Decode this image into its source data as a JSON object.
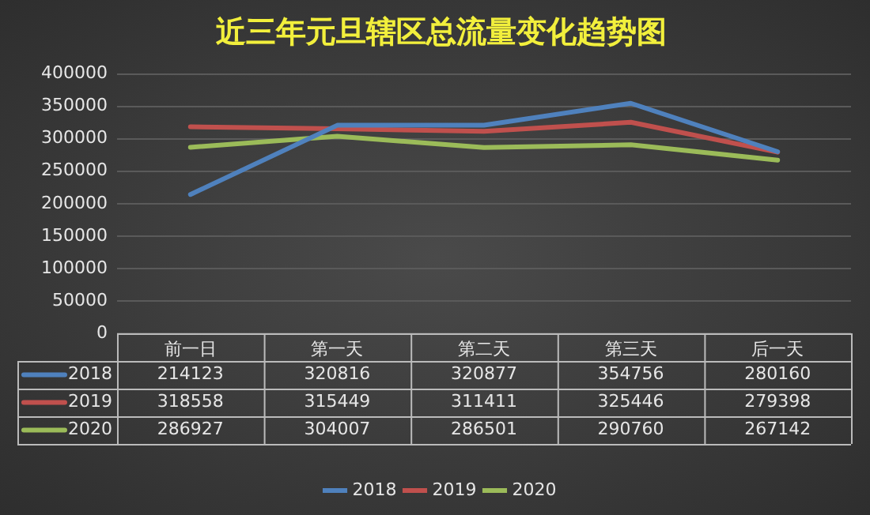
{
  "chart_data": {
    "type": "line",
    "title": "近三年元旦辖区总流量变化趋势图",
    "categories": [
      "前一日",
      "第一天",
      "第二天",
      "第三天",
      "后一天"
    ],
    "series": [
      {
        "name": "2018",
        "color": "#4f81bd",
        "values": [
          214123,
          320816,
          320877,
          354756,
          280160
        ]
      },
      {
        "name": "2019",
        "color": "#c0504d",
        "values": [
          318558,
          315449,
          311411,
          325446,
          279398
        ]
      },
      {
        "name": "2020",
        "color": "#9bbb59",
        "values": [
          286927,
          304007,
          286501,
          290760,
          267142
        ]
      }
    ],
    "ylim": [
      0,
      400000
    ],
    "yticks": [
      0,
      50000,
      100000,
      150000,
      200000,
      250000,
      300000,
      350000,
      400000
    ],
    "grid": "y",
    "legend": "bottom",
    "marker": "none",
    "line_style": "solid",
    "data_labels": true
  }
}
